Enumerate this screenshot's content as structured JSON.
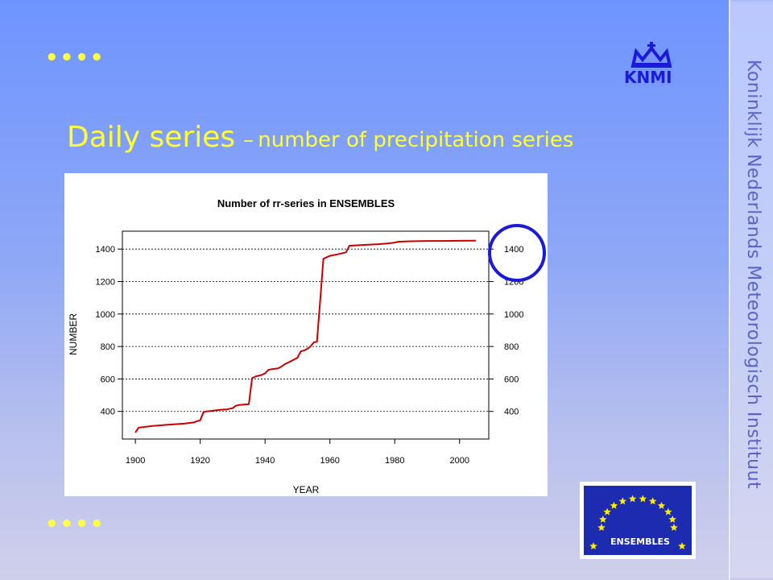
{
  "slide": {
    "title_main": "Daily series",
    "title_dash": "–",
    "title_sub": "number of precipitation series",
    "dots": "••••",
    "sidebar_text": "Koninklijk Nederlands Meteorologisch Instituut",
    "logo_text": "KNMI",
    "ensembles_label": "ENSEMBLES",
    "colors": {
      "title": "#ffff33",
      "accent": "#1a1ad8",
      "line": "#cc0000"
    }
  },
  "chart_data": {
    "type": "line",
    "title": "Number of rr-series in ENSEMBLES",
    "xlabel": "YEAR",
    "ylabel": "NUMBER",
    "xlim": [
      1896,
      2009
    ],
    "ylim": [
      230,
      1510
    ],
    "xticks": [
      1900,
      1920,
      1940,
      1960,
      1980,
      2000
    ],
    "yticks": [
      400,
      600,
      800,
      1000,
      1200,
      1400
    ],
    "right_axis_ticks": [
      400,
      600,
      800,
      1000,
      1200,
      1400
    ],
    "grid": "horizontal dotted",
    "series": [
      {
        "x": [
          1900,
          1901,
          1905,
          1910,
          1915,
          1918,
          1919,
          1920,
          1921,
          1922,
          1924,
          1926,
          1928,
          1930,
          1931,
          1932,
          1935,
          1936,
          1937,
          1939,
          1940,
          1941,
          1942,
          1944,
          1945,
          1946,
          1947,
          1948,
          1949,
          1950,
          1951,
          1952,
          1953,
          1954,
          1955,
          1956,
          1957,
          1958,
          1959,
          1960,
          1963,
          1965,
          1966,
          1970,
          1975,
          1978,
          1980,
          1981,
          1985,
          1990,
          1995,
          2000,
          2005
        ],
        "y": [
          270,
          300,
          310,
          318,
          325,
          332,
          340,
          345,
          395,
          400,
          405,
          410,
          412,
          420,
          435,
          440,
          445,
          605,
          615,
          625,
          635,
          655,
          660,
          665,
          675,
          690,
          700,
          710,
          720,
          730,
          770,
          775,
          785,
          800,
          825,
          830,
          1080,
          1340,
          1350,
          1358,
          1370,
          1380,
          1420,
          1425,
          1430,
          1435,
          1440,
          1445,
          1448,
          1450,
          1450,
          1451,
          1452
        ]
      }
    ]
  }
}
